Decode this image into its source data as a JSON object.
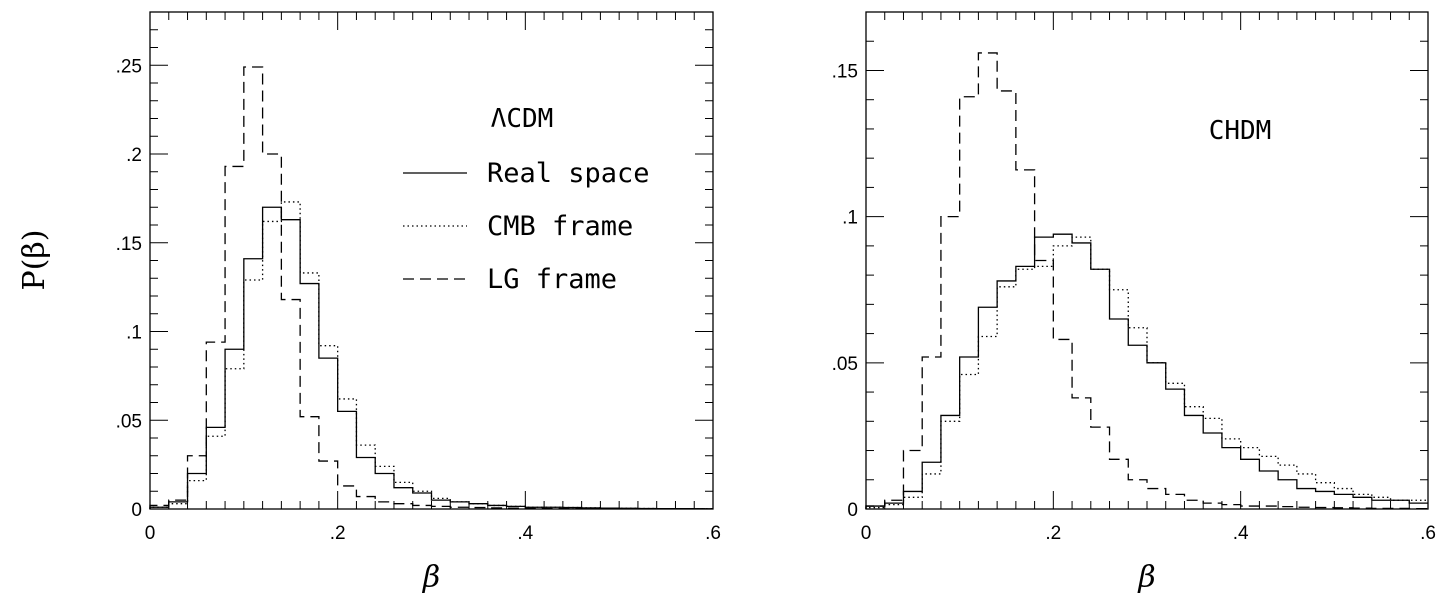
{
  "figure": {
    "ylabel": "P(β)"
  },
  "colors": {
    "ink": "#000000",
    "background": "#ffffff"
  },
  "legend": [
    {
      "label": "Real space",
      "style": "solid"
    },
    {
      "label": "CMB frame",
      "style": "dotted"
    },
    {
      "label": "LG frame",
      "style": "dashed"
    }
  ],
  "chart_data": [
    {
      "type": "line",
      "step": true,
      "title": "ΛCDM",
      "xlabel": "β",
      "ylabel": "P(β)",
      "xlim": [
        0,
        0.6
      ],
      "ylim": [
        0,
        0.28
      ],
      "xticks": [
        0,
        0.2,
        0.4,
        0.6
      ],
      "xtick_labels": [
        "0",
        ".2",
        ".4",
        ".6"
      ],
      "yticks": [
        0,
        0.05,
        0.1,
        0.15,
        0.2,
        0.25
      ],
      "ytick_labels": [
        "0",
        ".05",
        ".1",
        ".15",
        ".2",
        ".25"
      ],
      "bin_width": 0.02,
      "bin_edges": [
        0,
        0.02,
        0.04,
        0.06,
        0.08,
        0.1,
        0.12,
        0.14,
        0.16,
        0.18,
        0.2,
        0.22,
        0.24,
        0.26,
        0.28,
        0.3,
        0.32,
        0.34,
        0.36,
        0.38,
        0.4,
        0.42,
        0.44,
        0.46,
        0.48,
        0.5,
        0.52,
        0.54,
        0.56,
        0.58,
        0.6
      ],
      "series": [
        {
          "name": "Real space",
          "style": "solid",
          "values": [
            0.001,
            0.004,
            0.02,
            0.046,
            0.09,
            0.141,
            0.17,
            0.163,
            0.127,
            0.085,
            0.055,
            0.029,
            0.02,
            0.012,
            0.009,
            0.005,
            0.004,
            0.003,
            0.002,
            0.0015,
            0.001,
            0.001,
            0.0008,
            0.0006,
            0.0005,
            0.0004,
            0.0003,
            0.0002,
            0.0002,
            0.0001
          ]
        },
        {
          "name": "CMB frame",
          "style": "dotted",
          "values": [
            0.001,
            0.003,
            0.016,
            0.041,
            0.079,
            0.129,
            0.162,
            0.173,
            0.133,
            0.092,
            0.062,
            0.036,
            0.024,
            0.015,
            0.01,
            0.006,
            0.004,
            0.003,
            0.002,
            0.0015,
            0.001,
            0.001,
            0.0008,
            0.0006,
            0.0005,
            0.0004,
            0.0003,
            0.0002,
            0.0002,
            0.0001
          ]
        },
        {
          "name": "LG frame",
          "style": "dashed",
          "values": [
            0.002,
            0.005,
            0.03,
            0.094,
            0.193,
            0.249,
            0.2,
            0.118,
            0.052,
            0.027,
            0.013,
            0.007,
            0.004,
            0.003,
            0.002,
            0.0015,
            0.001,
            0.0008,
            0.0006,
            0.0005,
            0.0004,
            0.0003,
            0.0002,
            0.0002,
            0.0001,
            0.0001,
            0.0001,
            0.0001,
            0.0001,
            0.0001
          ]
        }
      ]
    },
    {
      "type": "line",
      "step": true,
      "title": "CHDM",
      "xlabel": "β",
      "ylabel": "",
      "xlim": [
        0,
        0.6
      ],
      "ylim": [
        0,
        0.17
      ],
      "xticks": [
        0,
        0.2,
        0.4,
        0.6
      ],
      "xtick_labels": [
        "0",
        ".2",
        ".4",
        ".6"
      ],
      "yticks": [
        0,
        0.05,
        0.1,
        0.15
      ],
      "ytick_labels": [
        "0",
        ".05",
        ".1",
        ".15"
      ],
      "bin_width": 0.02,
      "bin_edges": [
        0,
        0.02,
        0.04,
        0.06,
        0.08,
        0.1,
        0.12,
        0.14,
        0.16,
        0.18,
        0.2,
        0.22,
        0.24,
        0.26,
        0.28,
        0.3,
        0.32,
        0.34,
        0.36,
        0.38,
        0.4,
        0.42,
        0.44,
        0.46,
        0.48,
        0.5,
        0.52,
        0.54,
        0.56,
        0.58,
        0.6
      ],
      "series": [
        {
          "name": "Real space",
          "style": "solid",
          "values": [
            0.001,
            0.002,
            0.006,
            0.016,
            0.032,
            0.052,
            0.069,
            0.078,
            0.083,
            0.093,
            0.094,
            0.091,
            0.082,
            0.065,
            0.056,
            0.05,
            0.041,
            0.032,
            0.026,
            0.021,
            0.017,
            0.013,
            0.01,
            0.007,
            0.006,
            0.005,
            0.004,
            0.003,
            0.003,
            0.002
          ]
        },
        {
          "name": "CMB frame",
          "style": "dotted",
          "values": [
            0.0005,
            0.0015,
            0.004,
            0.012,
            0.03,
            0.046,
            0.059,
            0.076,
            0.082,
            0.083,
            0.09,
            0.093,
            0.082,
            0.075,
            0.062,
            0.05,
            0.043,
            0.035,
            0.031,
            0.024,
            0.021,
            0.018,
            0.015,
            0.012,
            0.009,
            0.007,
            0.005,
            0.004,
            0.003,
            0.003
          ]
        },
        {
          "name": "LG frame",
          "style": "dashed",
          "values": [
            0.001,
            0.003,
            0.02,
            0.052,
            0.1,
            0.141,
            0.156,
            0.143,
            0.116,
            0.085,
            0.058,
            0.038,
            0.028,
            0.017,
            0.01,
            0.007,
            0.005,
            0.003,
            0.002,
            0.0015,
            0.001,
            0.001,
            0.0008,
            0.0006,
            0.0005,
            0.0004,
            0.0003,
            0.0002,
            0.0002,
            0.0001
          ]
        }
      ]
    }
  ]
}
